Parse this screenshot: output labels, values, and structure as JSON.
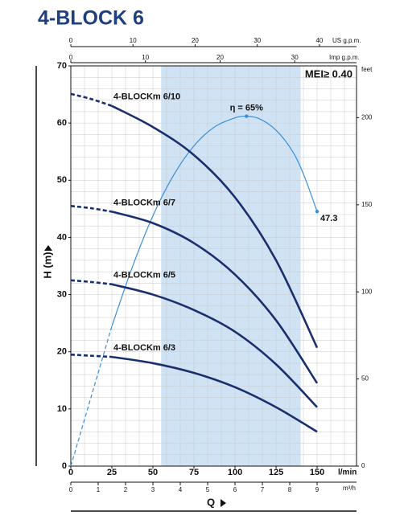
{
  "chart_data": {
    "type": "line",
    "title": "4-BLOCK 6",
    "annotation": "MEI≥ 0.40",
    "xlabel": "Q",
    "ylabel": "H (m)",
    "x_unit": "l/min",
    "x2_unit": "US g.p.m.",
    "x3_unit": "Imp g.p.m.",
    "x4_unit": "m³/h",
    "y2_unit": "feet",
    "xlim": [
      0,
      174
    ],
    "xticks": [
      0,
      25,
      50,
      75,
      100,
      125,
      150
    ],
    "x2lim": [
      0,
      45.97
    ],
    "x2ticks": [
      0,
      10,
      20,
      30,
      40
    ],
    "x3lim": [
      0,
      38.28
    ],
    "x3ticks": [
      0,
      10,
      20,
      30
    ],
    "x4lim": [
      0,
      10.44
    ],
    "x4ticks": [
      0,
      1,
      2,
      3,
      4,
      5,
      6,
      7,
      8,
      9
    ],
    "ylim": [
      0,
      70
    ],
    "yticks": [
      0,
      10,
      20,
      30,
      40,
      50,
      60,
      70
    ],
    "y2lim": [
      0,
      229.7
    ],
    "y2ticks": [
      0,
      50,
      100,
      150,
      200
    ],
    "y3lim": [
      0,
      74.35
    ],
    "grid": true,
    "shaded_xrange": [
      55,
      140
    ],
    "shade_color": "#cfe3f4",
    "dashed_xlim": [
      0,
      25
    ],
    "x": [
      0,
      12.5,
      25,
      50,
      75,
      100,
      125,
      150
    ],
    "series": [
      {
        "name": "4-BLOCKm 6/10",
        "color": "#1b2f6e",
        "values": [
          65.1,
          64.2,
          63.0,
          59.3,
          54.4,
          47.0,
          36.0,
          20.7
        ]
      },
      {
        "name": "4-BLOCKm 6/7",
        "color": "#1b2f6e",
        "values": [
          45.5,
          45.1,
          44.5,
          42.5,
          39.0,
          33.5,
          25.5,
          14.5
        ]
      },
      {
        "name": "4-BLOCKm 6/5",
        "color": "#1b2f6e",
        "values": [
          32.5,
          32.2,
          31.8,
          30.0,
          27.3,
          23.5,
          17.8,
          10.3
        ]
      },
      {
        "name": "4-BLOCKm 6/3",
        "color": "#1b2f6e",
        "values": [
          19.5,
          19.3,
          19.1,
          18.0,
          16.3,
          13.8,
          10.3,
          6.0
        ]
      }
    ],
    "efficiency": {
      "color": "#3b8fd6",
      "axis": "y3",
      "x": [
        0,
        12.5,
        25,
        37.5,
        50,
        62.5,
        75,
        87.5,
        100,
        107,
        115,
        125,
        135,
        142,
        150
      ],
      "values": [
        0,
        13,
        26,
        37,
        46.5,
        54,
        59.5,
        63,
        64.7,
        65,
        64.5,
        62.4,
        58.5,
        54,
        47.3
      ],
      "value_labels": [
        null,
        null,
        null,
        null,
        null,
        null,
        null,
        null,
        null,
        "η = 65%",
        null,
        null,
        null,
        null,
        "47.3"
      ]
    }
  }
}
